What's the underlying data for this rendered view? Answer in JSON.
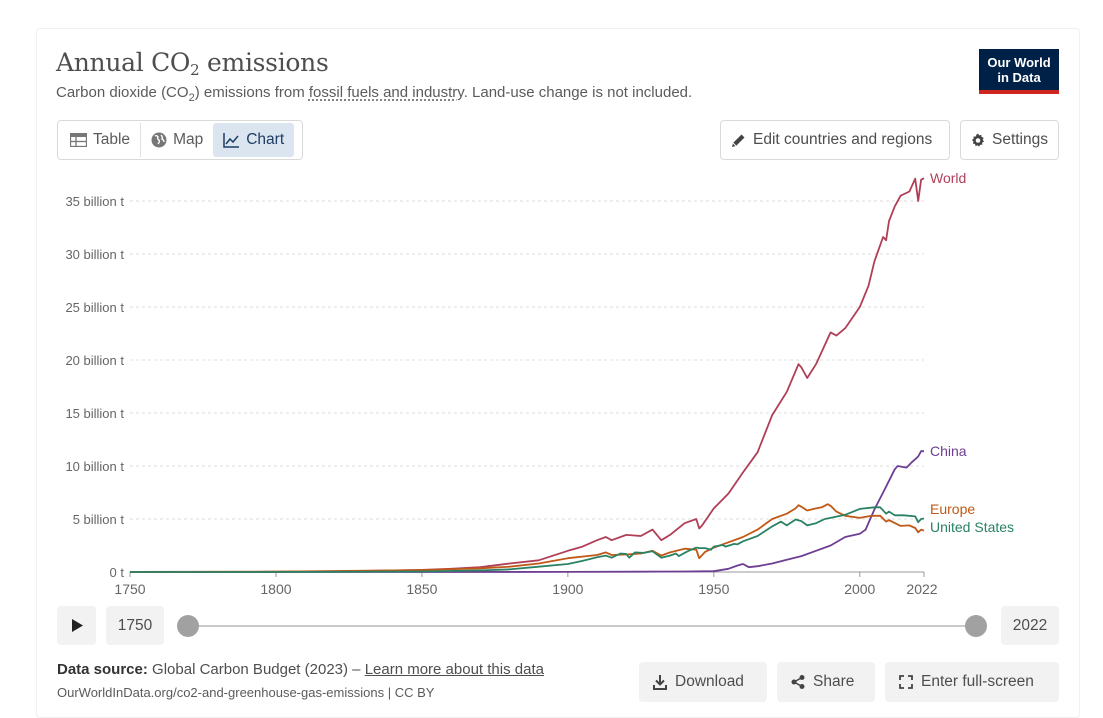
{
  "header": {
    "title_main": "Annual CO",
    "title_sub": "2",
    "title_end": " emissions",
    "subtitle_a": "Carbon dioxide (CO",
    "subtitle_sub": "2",
    "subtitle_b": ") emissions from ",
    "subtitle_link": "fossil fuels and industry",
    "subtitle_c": ". Land-use change is not included.",
    "logo_line1": "Our World",
    "logo_line2": "in Data"
  },
  "tabs": [
    {
      "label": "Table",
      "icon": "table-icon"
    },
    {
      "label": "Map",
      "icon": "globe-icon"
    },
    {
      "label": "Chart",
      "icon": "line-chart-icon",
      "active": true
    }
  ],
  "controls": {
    "edit_label": "Edit countries and regions",
    "settings_label": "Settings"
  },
  "timeline": {
    "start_year": "1750",
    "end_year": "2022"
  },
  "footer": {
    "source_label": "Data source:",
    "source_text": " Global Carbon Budget (2023) – ",
    "learn_more": "Learn more about this data",
    "url": "OurWorldInData.org/co2-and-greenhouse-gas-emissions | CC BY",
    "download_label": "Download",
    "share_label": "Share",
    "fullscreen_label": "Enter full-screen"
  },
  "colors": {
    "World": "#b13e57",
    "China": "#6d3e91",
    "Europe": "#c05917",
    "United States": "#2a8264"
  },
  "chart_data": {
    "type": "line",
    "title": "Annual CO₂ emissions",
    "xlim": [
      1750,
      2022
    ],
    "ylim": [
      0,
      35000000000
    ],
    "x_ticks": [
      1750,
      1800,
      1850,
      1900,
      1950,
      2000,
      2022
    ],
    "y_ticks": [
      {
        "value": 0,
        "label": "0 t"
      },
      {
        "value": 5000000000,
        "label": "5 billion t"
      },
      {
        "value": 10000000000,
        "label": "10 billion t"
      },
      {
        "value": 15000000000,
        "label": "15 billion t"
      },
      {
        "value": 20000000000,
        "label": "20 billion t"
      },
      {
        "value": 25000000000,
        "label": "25 billion t"
      },
      {
        "value": 30000000000,
        "label": "30 billion t"
      },
      {
        "value": 35000000000,
        "label": "35 billion t"
      }
    ],
    "grid": true,
    "units": "billion t",
    "series": [
      {
        "name": "World",
        "points": [
          [
            1750,
            0.01
          ],
          [
            1800,
            0.03
          ],
          [
            1820,
            0.05
          ],
          [
            1850,
            0.2
          ],
          [
            1860,
            0.3
          ],
          [
            1870,
            0.45
          ],
          [
            1880,
            0.8
          ],
          [
            1890,
            1.1
          ],
          [
            1900,
            2.0
          ],
          [
            1905,
            2.4
          ],
          [
            1910,
            3.0
          ],
          [
            1913,
            3.3
          ],
          [
            1915,
            3.0
          ],
          [
            1920,
            3.5
          ],
          [
            1925,
            3.4
          ],
          [
            1929,
            4.0
          ],
          [
            1932,
            3.0
          ],
          [
            1935,
            3.5
          ],
          [
            1940,
            4.6
          ],
          [
            1944,
            5.0
          ],
          [
            1945,
            4.1
          ],
          [
            1946,
            4.4
          ],
          [
            1950,
            6.0
          ],
          [
            1955,
            7.4
          ],
          [
            1960,
            9.4
          ],
          [
            1965,
            11.3
          ],
          [
            1970,
            14.8
          ],
          [
            1975,
            17.0
          ],
          [
            1979,
            19.6
          ],
          [
            1980,
            19.3
          ],
          [
            1982,
            18.3
          ],
          [
            1985,
            19.6
          ],
          [
            1990,
            22.6
          ],
          [
            1992,
            22.3
          ],
          [
            1995,
            23.0
          ],
          [
            2000,
            25.0
          ],
          [
            2003,
            27.0
          ],
          [
            2005,
            29.3
          ],
          [
            2008,
            31.6
          ],
          [
            2009,
            31.3
          ],
          [
            2010,
            33.1
          ],
          [
            2012,
            34.5
          ],
          [
            2014,
            35.5
          ],
          [
            2017,
            35.9
          ],
          [
            2019,
            37.1
          ],
          [
            2020,
            35.0
          ],
          [
            2021,
            37.0
          ],
          [
            2022,
            37.15
          ]
        ]
      },
      {
        "name": "China",
        "points": [
          [
            1750,
            0
          ],
          [
            1900,
            0.01
          ],
          [
            1940,
            0.05
          ],
          [
            1950,
            0.08
          ],
          [
            1955,
            0.3
          ],
          [
            1958,
            0.6
          ],
          [
            1960,
            0.75
          ],
          [
            1962,
            0.45
          ],
          [
            1965,
            0.55
          ],
          [
            1970,
            0.8
          ],
          [
            1975,
            1.15
          ],
          [
            1980,
            1.5
          ],
          [
            1985,
            2.0
          ],
          [
            1990,
            2.5
          ],
          [
            1995,
            3.3
          ],
          [
            2000,
            3.6
          ],
          [
            2002,
            4.0
          ],
          [
            2005,
            5.9
          ],
          [
            2008,
            7.5
          ],
          [
            2010,
            8.6
          ],
          [
            2012,
            9.7
          ],
          [
            2013,
            10.0
          ],
          [
            2015,
            9.9
          ],
          [
            2016,
            9.85
          ],
          [
            2018,
            10.4
          ],
          [
            2020,
            10.9
          ],
          [
            2021,
            11.4
          ],
          [
            2022,
            11.4
          ]
        ]
      },
      {
        "name": "Europe",
        "points": [
          [
            1750,
            0.01
          ],
          [
            1800,
            0.03
          ],
          [
            1850,
            0.18
          ],
          [
            1870,
            0.35
          ],
          [
            1880,
            0.5
          ],
          [
            1890,
            0.8
          ],
          [
            1900,
            1.3
          ],
          [
            1910,
            1.6
          ],
          [
            1913,
            1.85
          ],
          [
            1915,
            1.6
          ],
          [
            1920,
            1.65
          ],
          [
            1925,
            1.75
          ],
          [
            1929,
            2.0
          ],
          [
            1932,
            1.55
          ],
          [
            1935,
            1.85
          ],
          [
            1940,
            2.2
          ],
          [
            1944,
            2.1
          ],
          [
            1945,
            1.3
          ],
          [
            1947,
            1.9
          ],
          [
            1950,
            2.3
          ],
          [
            1955,
            2.8
          ],
          [
            1960,
            3.3
          ],
          [
            1965,
            4.0
          ],
          [
            1970,
            5.0
          ],
          [
            1975,
            5.5
          ],
          [
            1978,
            6.0
          ],
          [
            1979,
            6.3
          ],
          [
            1980,
            6.15
          ],
          [
            1982,
            5.8
          ],
          [
            1985,
            6.0
          ],
          [
            1987,
            6.1
          ],
          [
            1989,
            6.4
          ],
          [
            1990,
            6.25
          ],
          [
            1992,
            5.7
          ],
          [
            1995,
            5.3
          ],
          [
            2000,
            5.1
          ],
          [
            2004,
            5.3
          ],
          [
            2007,
            5.3
          ],
          [
            2009,
            4.75
          ],
          [
            2010,
            4.9
          ],
          [
            2014,
            4.35
          ],
          [
            2017,
            4.4
          ],
          [
            2019,
            4.15
          ],
          [
            2020,
            3.75
          ],
          [
            2021,
            4.0
          ],
          [
            2022,
            3.9
          ]
        ]
      },
      {
        "name": "United States",
        "points": [
          [
            1750,
            0
          ],
          [
            1800,
            0.002
          ],
          [
            1850,
            0.05
          ],
          [
            1870,
            0.15
          ],
          [
            1880,
            0.25
          ],
          [
            1890,
            0.5
          ],
          [
            1900,
            0.75
          ],
          [
            1905,
            1.05
          ],
          [
            1910,
            1.4
          ],
          [
            1913,
            1.55
          ],
          [
            1915,
            1.35
          ],
          [
            1918,
            1.75
          ],
          [
            1920,
            1.7
          ],
          [
            1921,
            1.35
          ],
          [
            1923,
            1.85
          ],
          [
            1926,
            1.8
          ],
          [
            1929,
            1.95
          ],
          [
            1932,
            1.35
          ],
          [
            1935,
            1.55
          ],
          [
            1937,
            1.75
          ],
          [
            1938,
            1.5
          ],
          [
            1941,
            1.95
          ],
          [
            1944,
            2.3
          ],
          [
            1945,
            2.25
          ],
          [
            1947,
            2.25
          ],
          [
            1949,
            2.1
          ],
          [
            1950,
            2.4
          ],
          [
            1953,
            2.55
          ],
          [
            1954,
            2.4
          ],
          [
            1957,
            2.65
          ],
          [
            1958,
            2.6
          ],
          [
            1960,
            2.9
          ],
          [
            1965,
            3.4
          ],
          [
            1970,
            4.3
          ],
          [
            1973,
            4.75
          ],
          [
            1975,
            4.4
          ],
          [
            1978,
            4.95
          ],
          [
            1980,
            4.8
          ],
          [
            1982,
            4.4
          ],
          [
            1985,
            4.6
          ],
          [
            1988,
            5.0
          ],
          [
            1990,
            5.1
          ],
          [
            1995,
            5.4
          ],
          [
            2000,
            5.95
          ],
          [
            2005,
            6.1
          ],
          [
            2007,
            6.1
          ],
          [
            2009,
            5.5
          ],
          [
            2010,
            5.7
          ],
          [
            2012,
            5.35
          ],
          [
            2015,
            5.35
          ],
          [
            2019,
            5.25
          ],
          [
            2020,
            4.7
          ],
          [
            2021,
            5.0
          ],
          [
            2022,
            5.05
          ]
        ]
      }
    ]
  }
}
